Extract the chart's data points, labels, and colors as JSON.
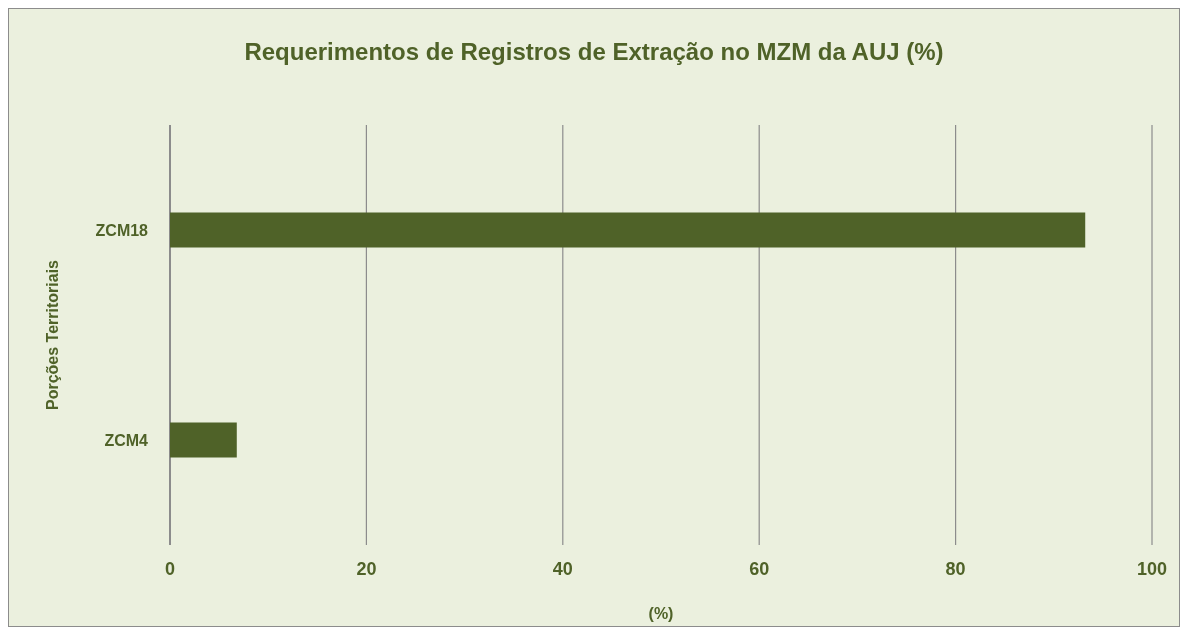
{
  "chart_data": {
    "type": "bar",
    "orientation": "horizontal",
    "title": "Requerimentos de Registros de Extração no MZM da AUJ (%)",
    "xlabel": "(%)",
    "ylabel": "Porções Territoriais",
    "categories": [
      "ZCM18",
      "ZCM4"
    ],
    "series": [
      {
        "color": "#4f6228",
        "values": [
          93.2,
          6.8
        ]
      }
    ],
    "xlim": [
      0,
      100
    ],
    "xticks": [
      0,
      20,
      40,
      60,
      80,
      100
    ],
    "grid": "x"
  }
}
